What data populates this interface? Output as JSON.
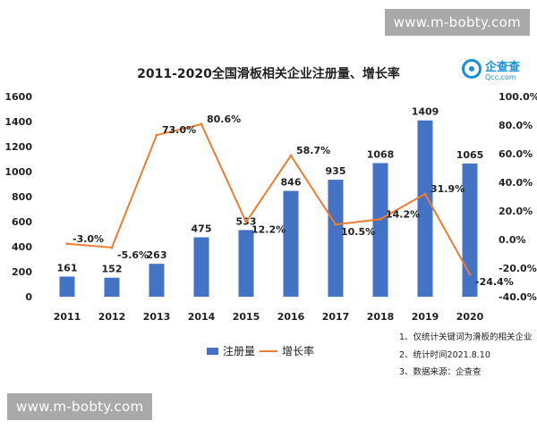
{
  "watermark": {
    "top": "www.m-bobty.com",
    "bottom": "www.m-bobty.com"
  },
  "logo": {
    "brand": "企查查",
    "sub": "Qcc.com"
  },
  "notes": [
    "1、仅统计关键词为滑板的相关企业",
    "2、统计时间2021.8.10",
    "3、数据来源：企查查"
  ],
  "chart_data": {
    "type": "bar",
    "title": "2011-2020全国滑板相关企业注册量、增长率",
    "categories": [
      "2011",
      "2012",
      "2013",
      "2014",
      "2015",
      "2016",
      "2017",
      "2018",
      "2019",
      "2020"
    ],
    "series": [
      {
        "name": "注册量",
        "type": "bar",
        "axis": "left",
        "color": "#4472c4",
        "values": [
          161,
          152,
          263,
          475,
          533,
          846,
          935,
          1068,
          1409,
          1065
        ],
        "labels": [
          "161",
          "152",
          "263",
          "475",
          "533",
          "846",
          "935",
          "1068",
          "1409",
          "1065"
        ]
      },
      {
        "name": "增长率",
        "type": "line",
        "axis": "right",
        "color": "#ed7d31",
        "values": [
          -3.0,
          -5.6,
          73.0,
          80.6,
          12.2,
          58.7,
          10.5,
          14.2,
          31.9,
          -24.4
        ],
        "labels": [
          "-3.0%",
          "-5.6%",
          "73.0%",
          "80.6%",
          "12.2%",
          "58.7%",
          "10.5%",
          "14.2%",
          "31.9%",
          "-24.4%"
        ]
      }
    ],
    "yleft": {
      "lim": [
        0,
        1600
      ],
      "ticks": [
        "0",
        "200",
        "400",
        "600",
        "800",
        "1000",
        "1200",
        "1400",
        "1600"
      ]
    },
    "yright": {
      "lim": [
        -40,
        100
      ],
      "ticks": [
        "-40.0%",
        "-20.0%",
        "0.0%",
        "20.0%",
        "40.0%",
        "60.0%",
        "80.0%",
        "100.0%"
      ]
    },
    "grid": false,
    "legend": "bottom"
  }
}
